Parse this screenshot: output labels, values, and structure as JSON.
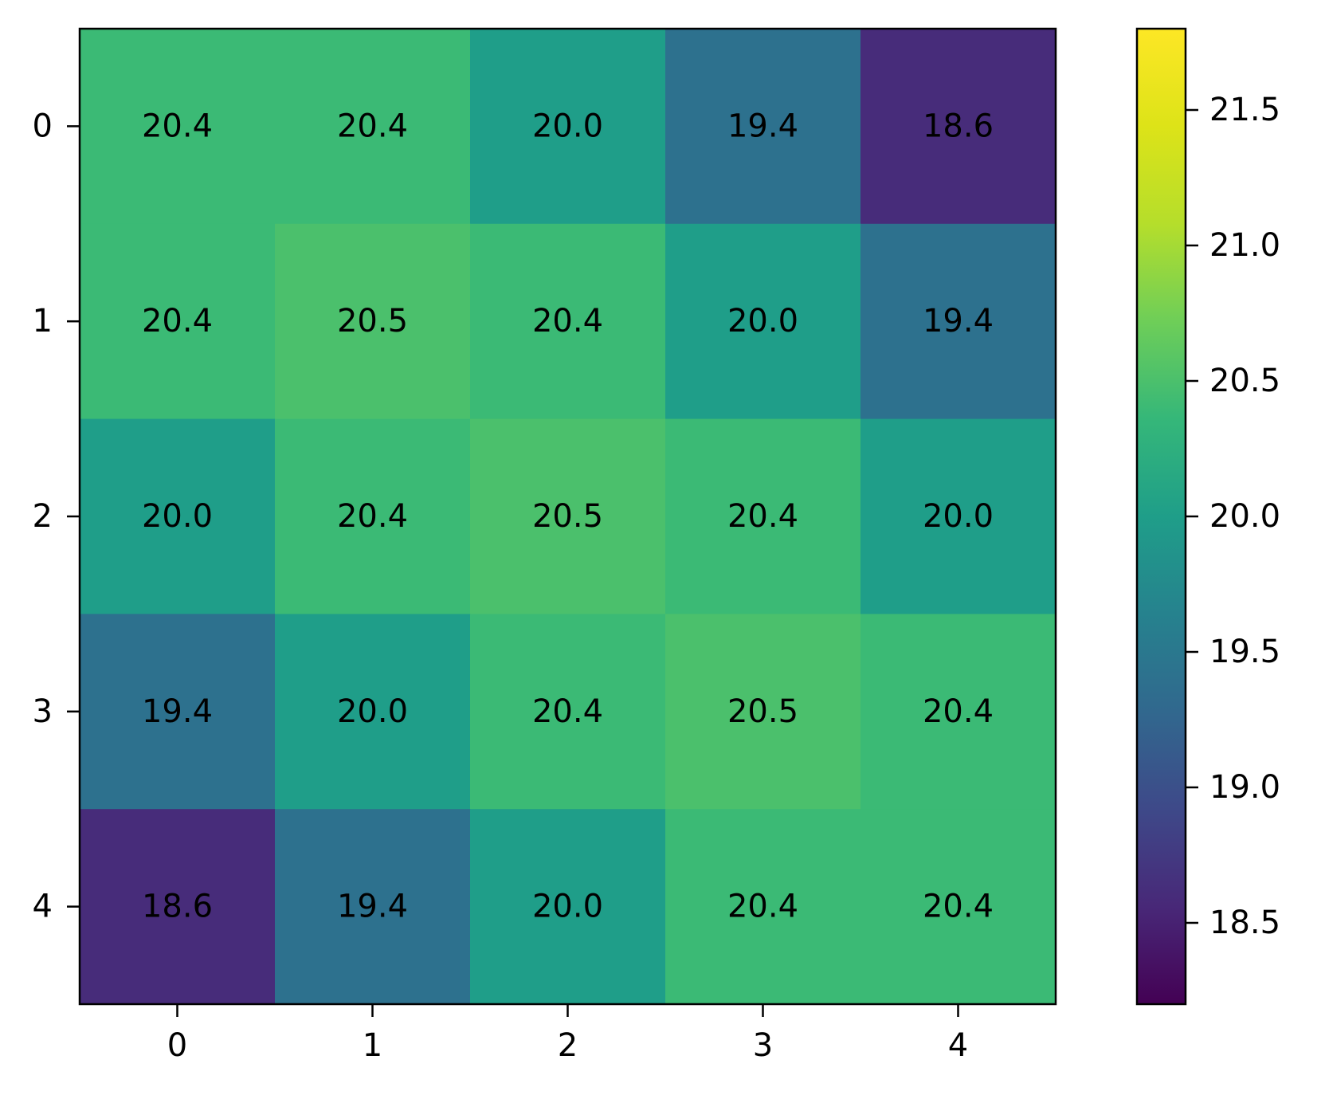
{
  "chart_data": {
    "type": "heatmap",
    "title": "",
    "xlabel": "",
    "ylabel": "",
    "x_ticks": [
      "0",
      "1",
      "2",
      "3",
      "4"
    ],
    "y_ticks": [
      "0",
      "1",
      "2",
      "3",
      "4"
    ],
    "values": [
      [
        20.4,
        20.4,
        20.0,
        19.4,
        18.6
      ],
      [
        20.4,
        20.5,
        20.4,
        20.0,
        19.4
      ],
      [
        20.0,
        20.4,
        20.5,
        20.4,
        20.0
      ],
      [
        19.4,
        20.0,
        20.4,
        20.5,
        20.4
      ],
      [
        18.6,
        19.4,
        20.0,
        20.4,
        20.4
      ]
    ],
    "cell_labels": [
      [
        "20.4",
        "20.4",
        "20.0",
        "19.4",
        "18.6"
      ],
      [
        "20.4",
        "20.5",
        "20.4",
        "20.0",
        "19.4"
      ],
      [
        "20.0",
        "20.4",
        "20.5",
        "20.4",
        "20.0"
      ],
      [
        "19.4",
        "20.0",
        "20.4",
        "20.5",
        "20.4"
      ],
      [
        "18.6",
        "19.4",
        "20.0",
        "20.4",
        "20.4"
      ]
    ],
    "colormap": "viridis",
    "colorbar": {
      "range": [
        18.2,
        21.8
      ],
      "ticks": [
        "18.5",
        "19.0",
        "19.5",
        "20.0",
        "20.5",
        "21.0",
        "21.5"
      ],
      "tick_values": [
        18.5,
        19.0,
        19.5,
        20.0,
        20.5,
        21.0,
        21.5
      ],
      "placement": "right"
    },
    "grid": false
  }
}
